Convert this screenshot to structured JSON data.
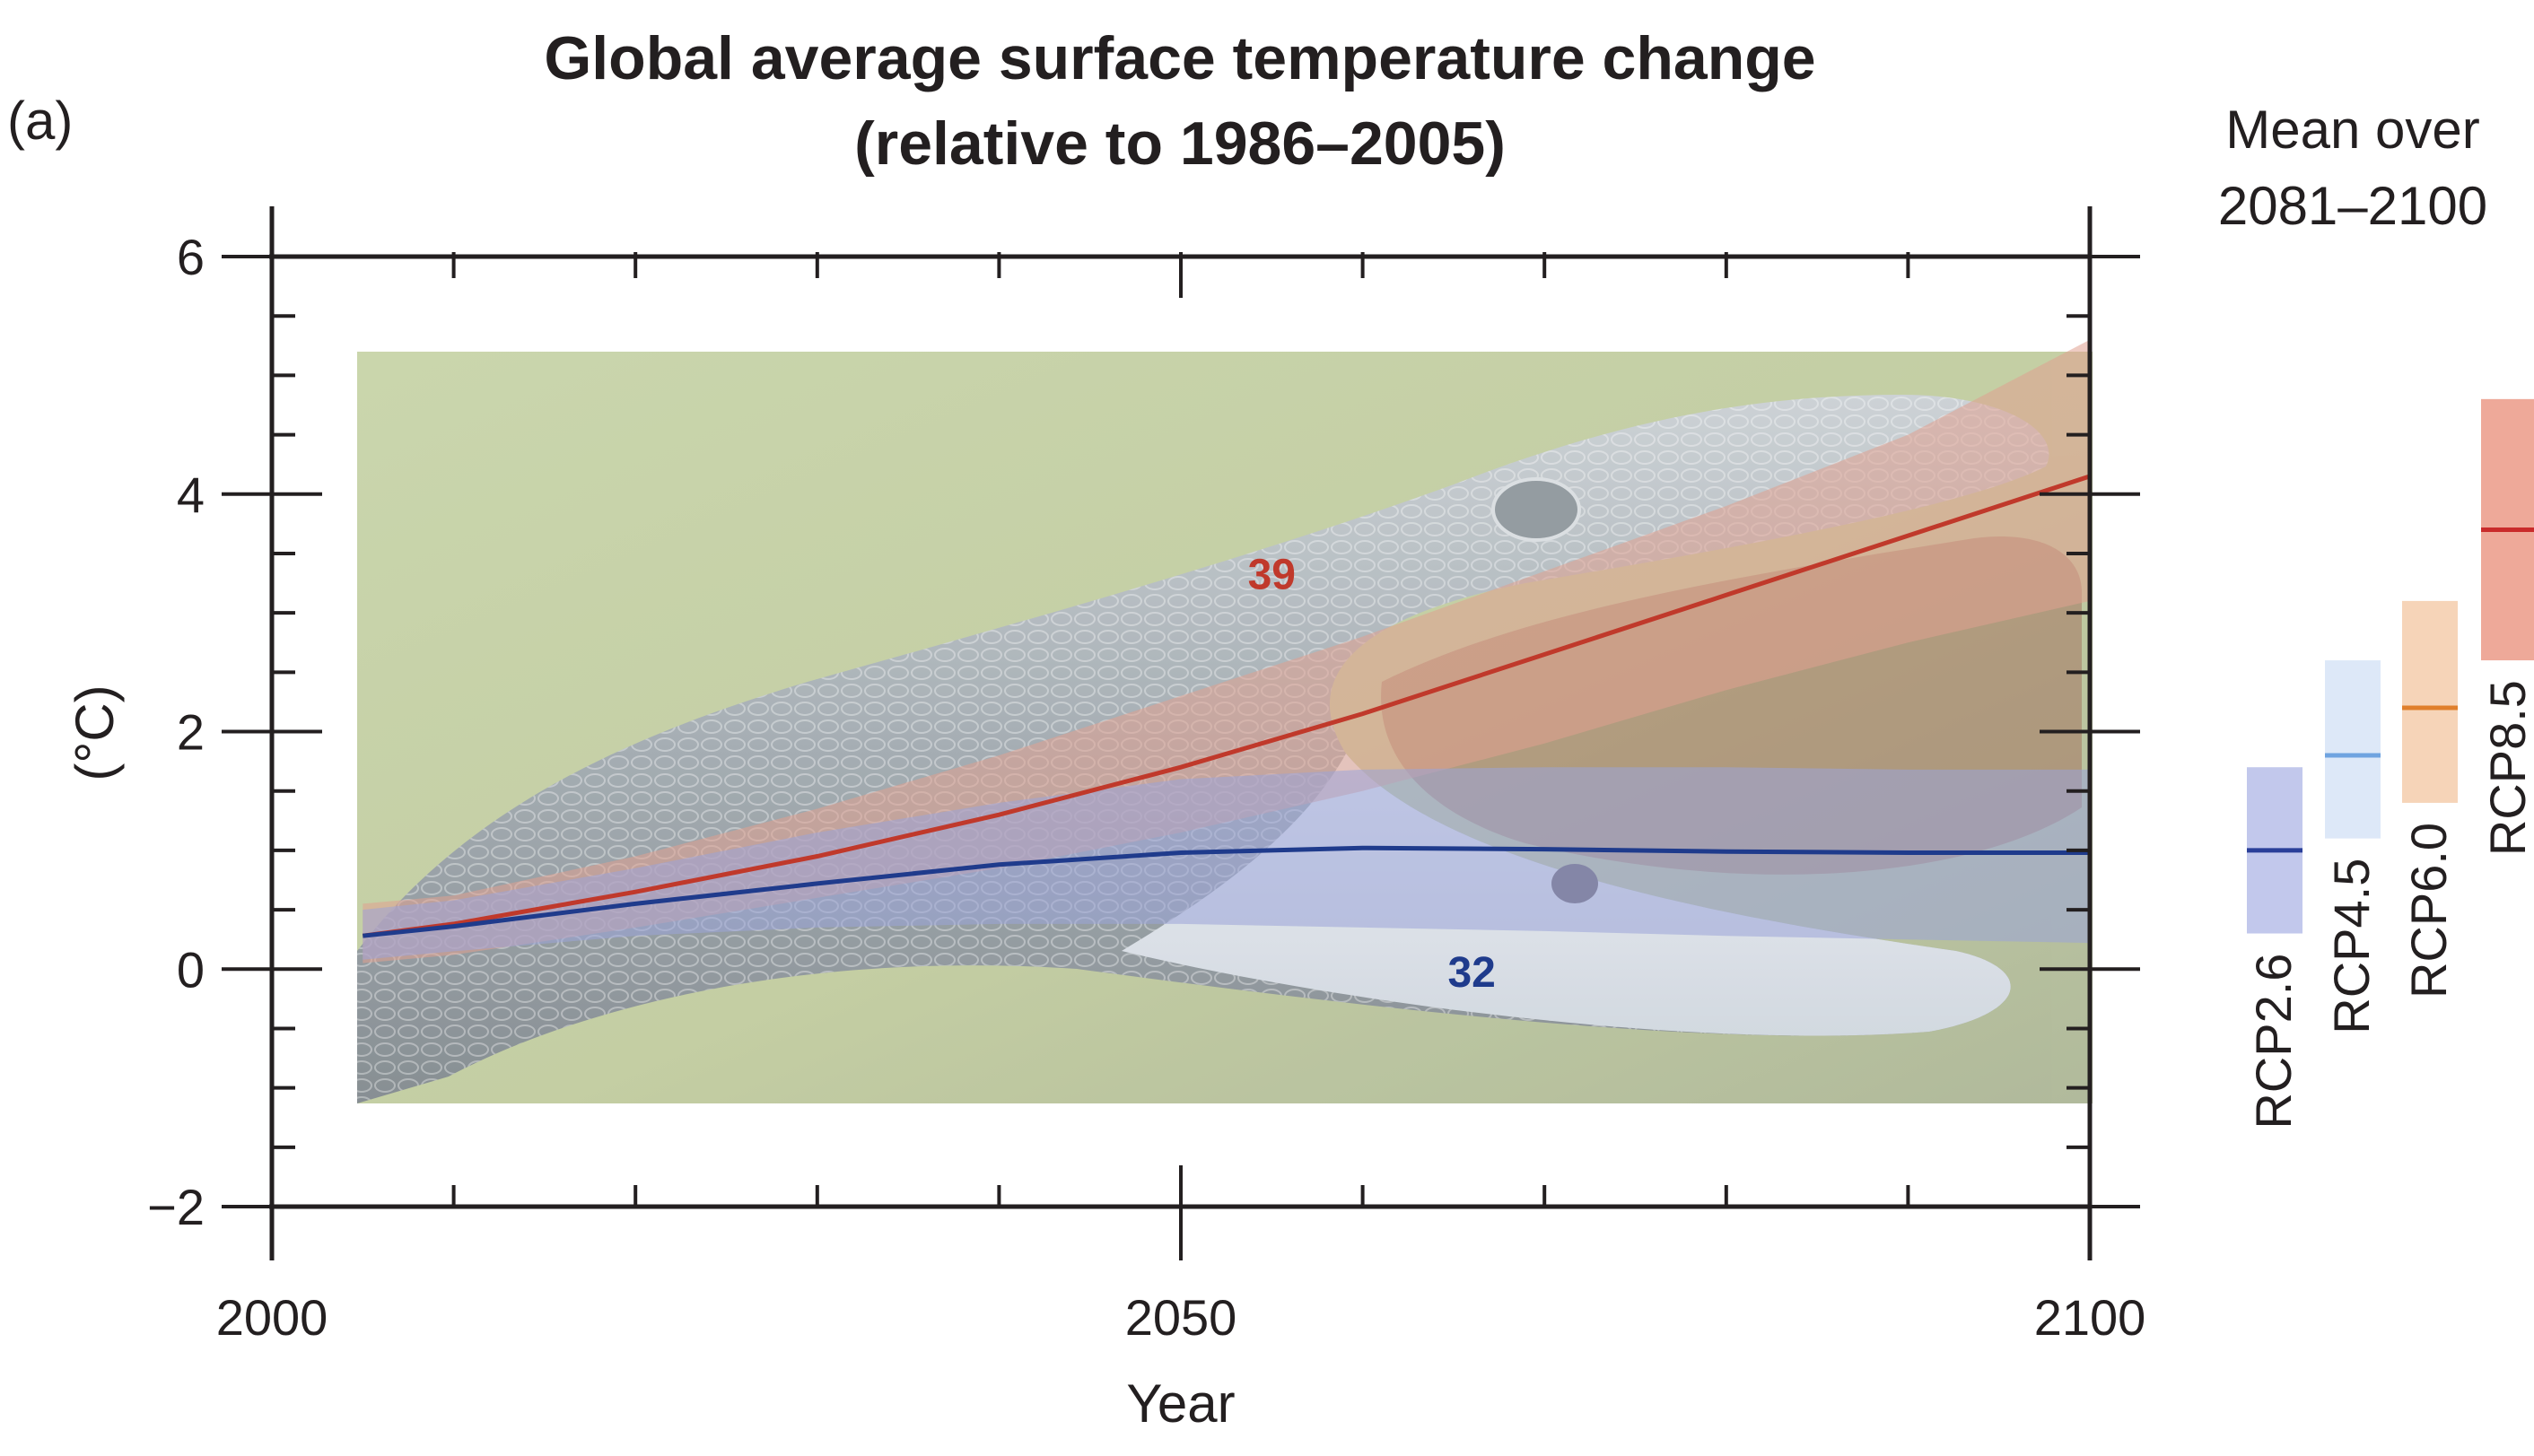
{
  "chart_data": {
    "type": "line",
    "panel_label": "(a)",
    "title": "Global average surface temperature change",
    "subtitle": "(relative to 1986–2005)",
    "xlabel": "Year",
    "ylabel": "(°C)",
    "xlim": [
      2000,
      2100
    ],
    "ylim": [
      -2,
      6
    ],
    "x_ticks": [
      2000,
      2050,
      2100
    ],
    "y_ticks": [
      6,
      4,
      2,
      0,
      -2
    ],
    "y_tick_labels": [
      "6",
      "4",
      "2",
      "0",
      "−2"
    ],
    "grid": false,
    "overlay_image": "open-mouth snake photograph covering 2005–2100",
    "series": [
      {
        "name": "RCP8.5",
        "color": "#c0392b",
        "band_color": "#e0a090",
        "model_count": "39",
        "count_x": 2055,
        "count_y": 3.2,
        "x": [
          2005,
          2010,
          2020,
          2030,
          2040,
          2050,
          2060,
          2070,
          2080,
          2090,
          2100
        ],
        "values": [
          0.28,
          0.38,
          0.65,
          0.95,
          1.3,
          1.7,
          2.15,
          2.65,
          3.15,
          3.65,
          4.15
        ],
        "upper": [
          0.55,
          0.62,
          0.95,
          1.35,
          1.8,
          2.3,
          2.8,
          3.35,
          3.9,
          4.5,
          5.3
        ],
        "lower": [
          0.05,
          0.12,
          0.35,
          0.6,
          0.85,
          1.15,
          1.5,
          1.9,
          2.35,
          2.75,
          3.1
        ]
      },
      {
        "name": "RCP2.6",
        "color": "#1f3b8c",
        "band_color": "#9aa4d8",
        "model_count": "32",
        "count_x": 2066,
        "count_y": -0.15,
        "x": [
          2005,
          2010,
          2020,
          2030,
          2040,
          2050,
          2060,
          2070,
          2080,
          2090,
          2100
        ],
        "values": [
          0.28,
          0.36,
          0.55,
          0.72,
          0.88,
          0.98,
          1.02,
          1.01,
          0.99,
          0.98,
          0.98
        ],
        "upper": [
          0.5,
          0.58,
          0.85,
          1.15,
          1.4,
          1.6,
          1.68,
          1.7,
          1.7,
          1.68,
          1.68
        ],
        "lower": [
          0.08,
          0.15,
          0.28,
          0.35,
          0.38,
          0.38,
          0.35,
          0.32,
          0.28,
          0.25,
          0.22
        ]
      }
    ],
    "mean_2081_2100": {
      "title_line1": "Mean over",
      "title_line2": "2081–2100",
      "bars": [
        {
          "name": "RCP2.6",
          "mean": 1.0,
          "low": 0.3,
          "high": 1.7,
          "line_color": "#2a3f99",
          "fill_color": "#c2c8ec"
        },
        {
          "name": "RCP4.5",
          "mean": 1.8,
          "low": 1.1,
          "high": 2.6,
          "line_color": "#6fa3e0",
          "fill_color": "#dde8f8"
        },
        {
          "name": "RCP6.0",
          "mean": 2.2,
          "low": 1.4,
          "high": 3.1,
          "line_color": "#e07f2c",
          "fill_color": "#f6d4b8"
        },
        {
          "name": "RCP8.5",
          "mean": 3.7,
          "low": 2.6,
          "high": 4.8,
          "line_color": "#c92b2b",
          "fill_color": "#eea999"
        }
      ]
    }
  }
}
